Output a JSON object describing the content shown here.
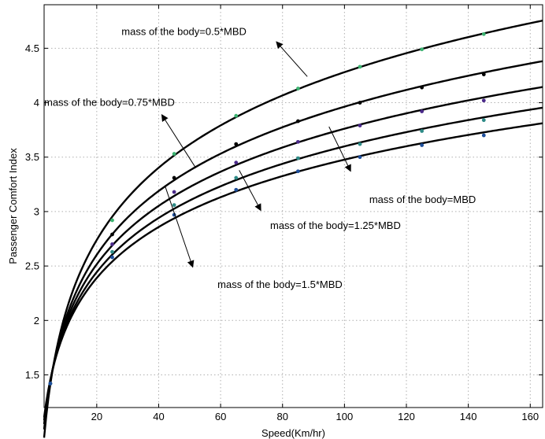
{
  "chart_data": {
    "type": "line",
    "title": "",
    "xlabel": "Speed(Km/hr)",
    "ylabel": "Passenger Comfort Index",
    "xlim": [
      3,
      164
    ],
    "ylim": [
      1.2,
      4.9
    ],
    "grid": true,
    "x_ticks": [
      20,
      40,
      60,
      80,
      100,
      120,
      140,
      160
    ],
    "y_ticks": [
      1.5,
      2,
      2.5,
      3,
      3.5,
      4,
      4.5
    ],
    "x_tick_labels": [
      "20",
      "40",
      "60",
      "80",
      "100",
      "120",
      "140",
      "160"
    ],
    "y_tick_labels": [
      "1.5",
      "2",
      "2.5",
      "3",
      "3.5",
      "4",
      "4.5"
    ],
    "x": [
      5,
      25,
      45,
      65,
      85,
      105,
      125,
      145
    ],
    "series": [
      {
        "values": [
          1.42,
          2.92,
          3.53,
          3.88,
          4.13,
          4.33,
          4.49,
          4.63
        ],
        "line_color": "#000000",
        "marker_color": "#3cb371"
      },
      {
        "values": [
          1.42,
          2.79,
          3.31,
          3.62,
          3.83,
          4.0,
          4.14,
          4.26
        ],
        "line_color": "#000000",
        "marker_color": "#000000"
      },
      {
        "values": [
          1.42,
          2.7,
          3.18,
          3.45,
          3.64,
          3.79,
          3.92,
          4.02
        ],
        "line_color": "#000000",
        "marker_color": "#4b2a8a"
      },
      {
        "values": [
          1.42,
          2.63,
          3.06,
          3.31,
          3.49,
          3.62,
          3.74,
          3.84
        ],
        "line_color": "#000000",
        "marker_color": "#2e8b87"
      },
      {
        "values": [
          1.42,
          2.58,
          2.97,
          3.2,
          3.37,
          3.5,
          3.61,
          3.7
        ],
        "line_color": "#000000",
        "marker_color": "#1e4f9c"
      }
    ],
    "annotations": [
      {
        "text": "mass of the body=0.5*MBD",
        "text_xy": [
          28,
          4.62
        ],
        "arrow_from": [
          88,
          4.24
        ],
        "arrow_to": [
          78,
          4.56
        ]
      },
      {
        "text": "mass of the body=0.75*MBD",
        "text_xy": [
          3,
          3.97
        ],
        "arrow_from": [
          52,
          3.4
        ],
        "arrow_to": [
          41,
          3.89
        ]
      },
      {
        "text": "mass of the body=MBD",
        "text_xy": [
          108,
          3.08
        ],
        "arrow_from": [
          95,
          3.78
        ],
        "arrow_to": [
          102,
          3.37
        ]
      },
      {
        "text": "mass of the body=1.25*MBD",
        "text_xy": [
          76,
          2.84
        ],
        "arrow_from": [
          66,
          3.38
        ],
        "arrow_to": [
          73,
          3.01
        ]
      },
      {
        "text": "mass of the body=1.5*MBD",
        "text_xy": [
          59,
          2.3
        ],
        "arrow_from": [
          42,
          3.24
        ],
        "arrow_to": [
          51,
          2.49
        ]
      }
    ]
  }
}
